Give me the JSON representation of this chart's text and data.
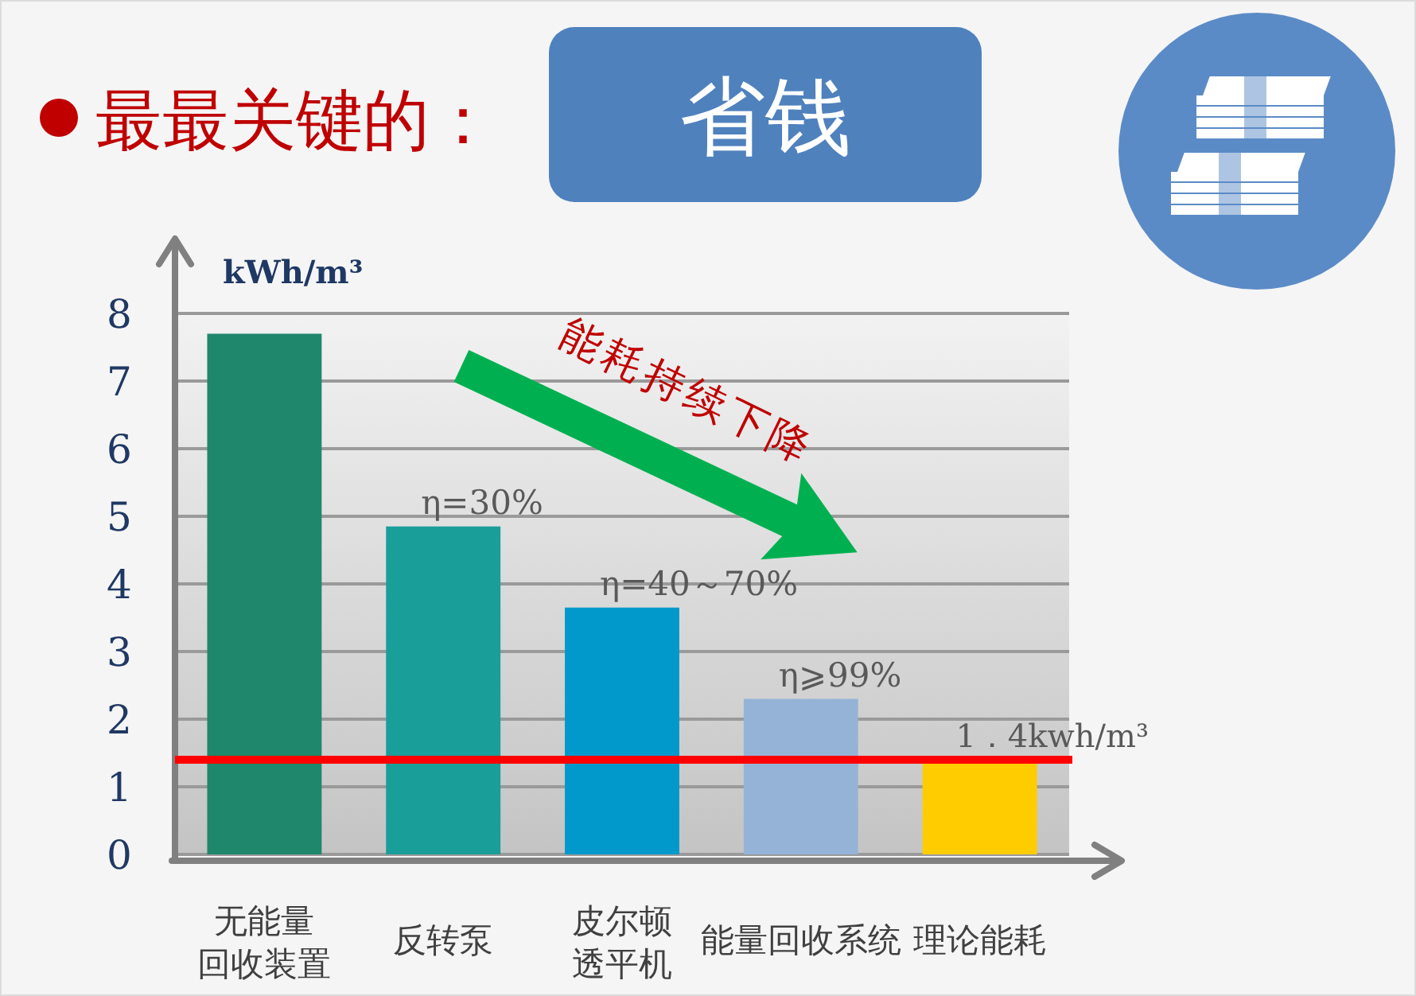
{
  "chart_data": {
    "type": "bar",
    "title": "最最关键的：",
    "subtitle": "省钱",
    "ylabel": "kWh/m³",
    "categories": [
      "无能量回收装置",
      "反转泵",
      "皮尔顿透平机",
      "能量回收系统",
      "理论能耗"
    ],
    "values": [
      7.7,
      4.85,
      3.65,
      2.3,
      1.35
    ],
    "colors": [
      "#1f876b",
      "#1a9e9a",
      "#0199cc",
      "#95b3d7",
      "#ffcc00"
    ],
    "ylim": [
      0,
      8
    ],
    "yticks": [
      0,
      1,
      2,
      3,
      4,
      5,
      6,
      7,
      8
    ],
    "grid": "y",
    "ref_lines": [
      {
        "axis": "y",
        "value": 1.4,
        "label": "1．4kwh/m³",
        "color": "#ff0000"
      }
    ],
    "annotations": [
      {
        "text": "η=30%",
        "x": "反转泵",
        "y": 4.85
      },
      {
        "text": "η=40～70%",
        "x": "皮尔顿透平机",
        "y": 3.65
      },
      {
        "text": "η⩾99%",
        "x": "能量回收系统",
        "y": 2.3
      },
      "能耗持续下降"
    ]
  }
}
